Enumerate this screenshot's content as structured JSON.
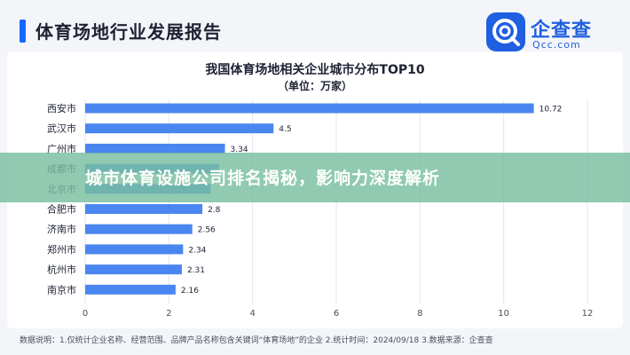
{
  "header": {
    "title": "体育场地行业发展报告"
  },
  "logo": {
    "name": "企查查",
    "sub": "Qcc.com"
  },
  "overlay": {
    "text": "城市体育设施公司排名揭秘，影响力深度解析"
  },
  "footnote": "数据说明：1.仅统计企业名称、经营范围、品牌产品名称包含关键词“体育场地”的企业  2.统计时间：2024/09/18  3.数据来源：企查查",
  "colors": {
    "bar": "#4a86f0",
    "accent": "#1667ff",
    "overlay": "#78bea0"
  },
  "chart_data": {
    "type": "bar",
    "orientation": "horizontal",
    "title": "我国体育场地相关企业城市分布TOP10",
    "subtitle": "（单位：万家）",
    "categories": [
      "西安市",
      "武汉市",
      "广州市",
      "成都市",
      "北京市",
      "合肥市",
      "济南市",
      "郑州市",
      "杭州市",
      "南京市"
    ],
    "values": [
      10.72,
      4.5,
      3.34,
      3.2,
      3.0,
      2.8,
      2.56,
      2.34,
      2.31,
      2.16
    ],
    "value_labels": [
      "10.72",
      "4.5",
      "3.34",
      "",
      "",
      "2.8",
      "2.56",
      "2.34",
      "2.31",
      "2.16"
    ],
    "xlim": [
      0,
      12
    ],
    "xticks": [
      0,
      2,
      4,
      6,
      8,
      10,
      12
    ],
    "grid": true
  }
}
